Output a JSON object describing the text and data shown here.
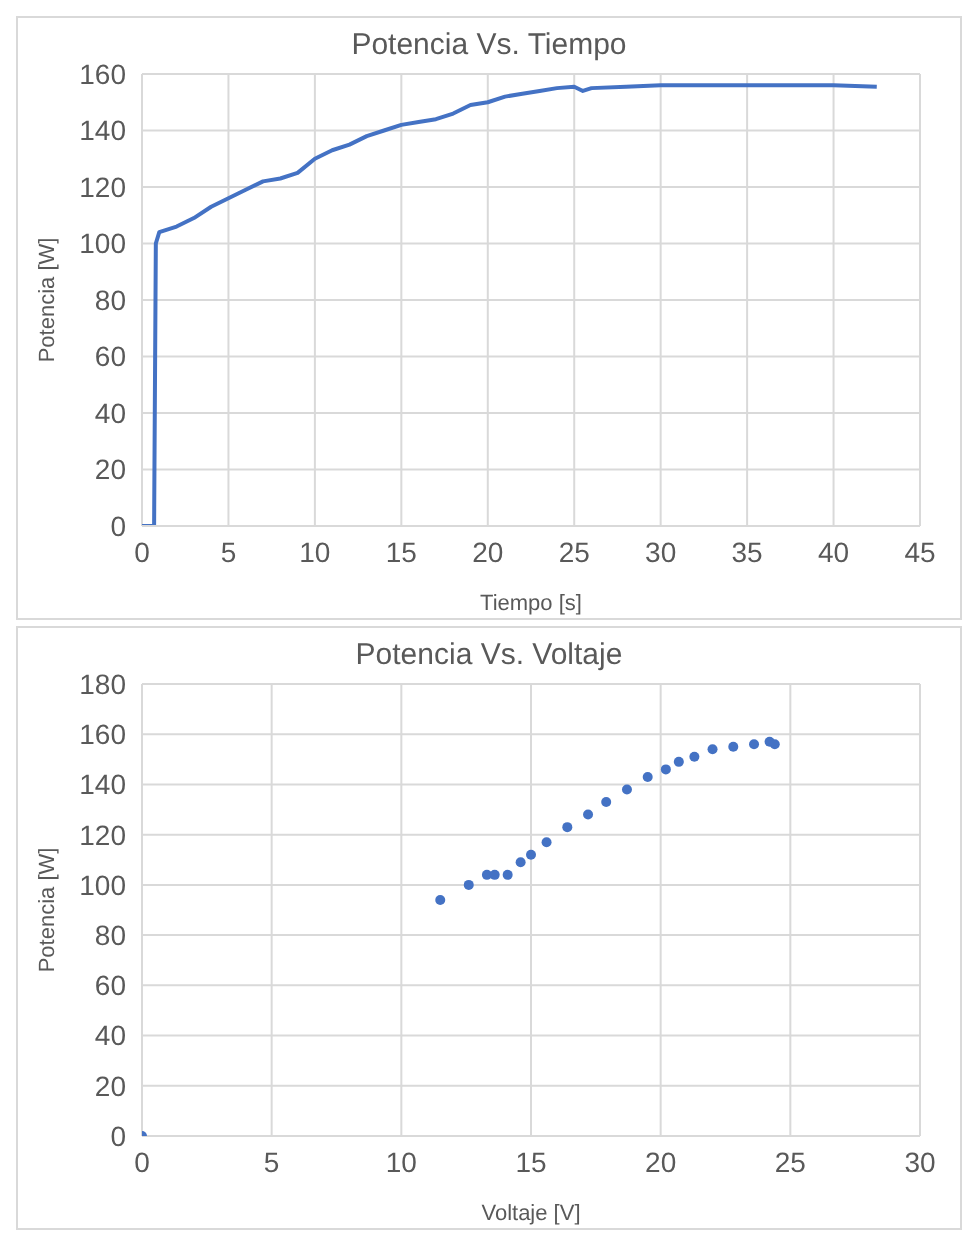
{
  "chart_data": [
    {
      "type": "line",
      "title": "Potencia Vs. Tiempo",
      "xlabel": "Tiempo [s]",
      "ylabel": "Potencia [W]",
      "xlim": [
        0,
        45
      ],
      "xticks": [
        0,
        5,
        10,
        15,
        20,
        25,
        30,
        35,
        40,
        45
      ],
      "ylim": [
        0,
        160
      ],
      "yticks": [
        0,
        20,
        40,
        60,
        80,
        100,
        120,
        140,
        160
      ],
      "grid": true,
      "marker": "none",
      "line_style": "solid",
      "x": [
        0,
        0.7,
        0.8,
        1,
        2,
        3,
        4,
        5,
        6,
        7,
        8,
        9,
        10,
        11,
        12,
        13,
        14,
        15,
        16,
        17,
        18,
        19,
        20,
        21,
        22,
        23,
        24,
        25,
        25.5,
        26,
        28,
        30,
        35,
        40,
        42.5
      ],
      "series": [
        {
          "color": "#4472c4",
          "values": [
            0,
            0,
            100,
            104,
            106,
            109,
            113,
            116,
            119,
            122,
            123,
            125,
            130,
            133,
            135,
            138,
            140,
            142,
            143,
            144,
            146,
            149,
            150,
            152,
            153,
            154,
            155,
            155.5,
            154,
            155,
            155.5,
            156,
            156,
            156,
            155.5
          ]
        }
      ]
    },
    {
      "type": "scatter",
      "title": "Potencia Vs. Voltaje",
      "xlabel": "Voltaje [V]",
      "ylabel": "Potencia [W]",
      "xlim": [
        0,
        30
      ],
      "xticks": [
        0,
        5,
        10,
        15,
        20,
        25,
        30
      ],
      "ylim": [
        0,
        180
      ],
      "yticks": [
        0,
        20,
        40,
        60,
        80,
        100,
        120,
        140,
        160,
        180
      ],
      "grid": true,
      "marker": "circle",
      "x": [
        0,
        11.5,
        12.6,
        13.3,
        13.6,
        14.1,
        14.6,
        15,
        15.6,
        16.4,
        17.2,
        17.9,
        18.7,
        19.5,
        20.2,
        20.7,
        21.3,
        22,
        22.8,
        23.6,
        24.2,
        24.4
      ],
      "series": [
        {
          "color": "#4472c4",
          "values": [
            0,
            94,
            100,
            104,
            104,
            104,
            109,
            112,
            117,
            123,
            128,
            133,
            138,
            143,
            146,
            149,
            151,
            154,
            155,
            156,
            157,
            156
          ]
        }
      ]
    }
  ]
}
